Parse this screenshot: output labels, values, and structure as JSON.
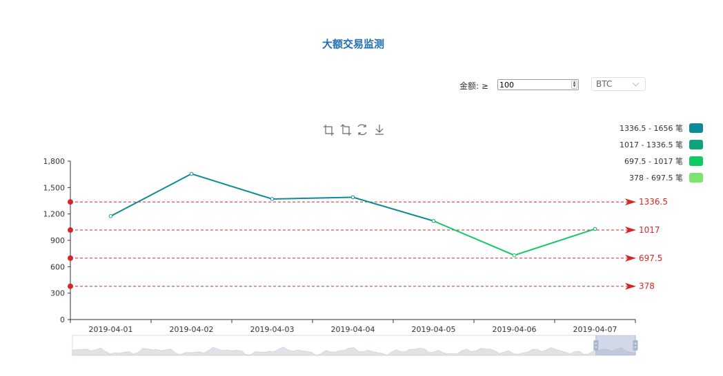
{
  "header": {
    "title": "大额交易监测"
  },
  "filter": {
    "amount_label": "金额: ≥",
    "amount_value": "100",
    "currency_value": "BTC"
  },
  "toolbox": {
    "icons": [
      "zoom-icon",
      "zoom-reset-icon",
      "restore-icon",
      "download-icon"
    ]
  },
  "chart_data": {
    "type": "line",
    "title": "大额交易监测",
    "x": [
      "2019-04-01",
      "2019-04-02",
      "2019-04-03",
      "2019-04-04",
      "2019-04-05",
      "2019-04-06",
      "2019-04-07"
    ],
    "values": [
      1175,
      1656,
      1370,
      1390,
      1120,
      730,
      1030
    ],
    "ylim": [
      0,
      1800
    ],
    "yticks": [
      0,
      300,
      600,
      900,
      1200,
      1500,
      1800
    ],
    "ytick_labels": [
      "0",
      "300",
      "600",
      "900",
      "1,200",
      "1,500",
      "1,800"
    ],
    "grid": false,
    "legend_position": "top-right",
    "visual_map": [
      {
        "label": "1336.5 - 1656 笔",
        "min": 1336.5,
        "max": 1656,
        "color": "#0b8b99"
      },
      {
        "label": "1017 - 1336.5 笔",
        "min": 1017,
        "max": 1336.5,
        "color": "#0ea37a"
      },
      {
        "label": "697.5 - 1017 笔",
        "min": 697.5,
        "max": 1017,
        "color": "#0fc961"
      },
      {
        "label": "378 - 697.5 笔",
        "min": 378,
        "max": 697.5,
        "color": "#7de36e"
      }
    ],
    "mark_lines": [
      {
        "value": 1336.5,
        "label": "1336.5"
      },
      {
        "value": 1017,
        "label": "1017"
      },
      {
        "value": 697.5,
        "label": "697.5"
      },
      {
        "value": 378,
        "label": "378"
      }
    ],
    "mark_color": "#d62728",
    "data_zoom": {
      "start_fraction": 0.93,
      "end_fraction": 1.0
    }
  }
}
